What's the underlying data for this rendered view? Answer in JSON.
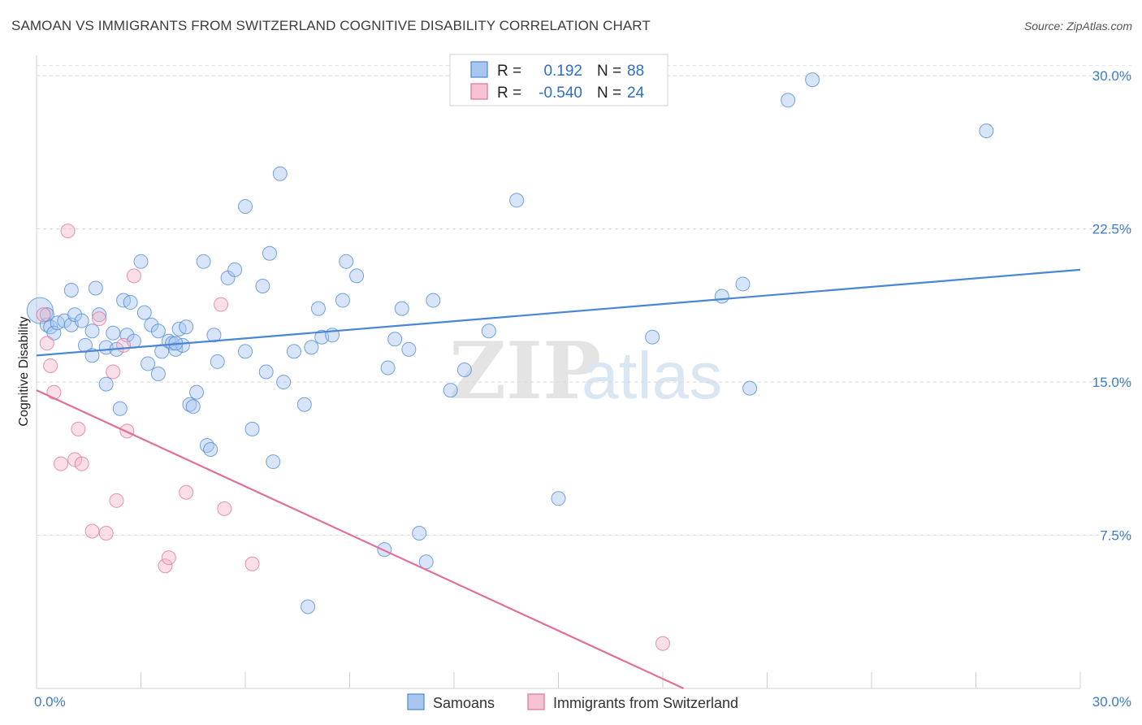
{
  "title": "SAMOAN VS IMMIGRANTS FROM SWITZERLAND COGNITIVE DISABILITY CORRELATION CHART",
  "source": "Source: ZipAtlas.com",
  "watermark": {
    "zip": "ZIP",
    "atlas": "atlas"
  },
  "colors": {
    "blue": "#4a86d6",
    "blue_fill": "#a9c6ef",
    "pink": "#e0709a",
    "pink_fill": "#f5b9cd",
    "tick": "#3d7cc9"
  },
  "legend": {
    "r_label": "R =",
    "n_label": "N =",
    "rows": [
      {
        "r": "0.192",
        "n": "88"
      },
      {
        "r": "-0.540",
        "n": "24"
      }
    ]
  },
  "chart_data": {
    "type": "scatter",
    "title": "SAMOAN VS IMMIGRANTS FROM SWITZERLAND COGNITIVE DISABILITY CORRELATION CHART",
    "xlabel": "",
    "ylabel": "Cognitive Disability",
    "xlim": [
      0,
      30
    ],
    "ylim": [
      0,
      31
    ],
    "x_tick_labels": [
      "0.0%",
      "30.0%"
    ],
    "y_ticks": [
      7.5,
      15.0,
      22.5,
      30.0
    ],
    "y_tick_labels": [
      "7.5%",
      "15.0%",
      "22.5%",
      "30.0%"
    ],
    "grid": "horizontal dashed",
    "legend_position": "top-center",
    "series": [
      {
        "name": "Samoans",
        "color": "#4a86d6",
        "trend": {
          "x": [
            0,
            30
          ],
          "y": [
            16.3,
            20.5
          ]
        },
        "points": [
          [
            0.1,
            18.5
          ],
          [
            0.3,
            17.8
          ],
          [
            0.3,
            18.3
          ],
          [
            0.4,
            17.7
          ],
          [
            0.5,
            17.4
          ],
          [
            0.6,
            17.9
          ],
          [
            0.8,
            18.0
          ],
          [
            1.0,
            17.8
          ],
          [
            1.0,
            19.5
          ],
          [
            1.1,
            18.3
          ],
          [
            1.3,
            18.0
          ],
          [
            1.4,
            16.8
          ],
          [
            1.6,
            17.5
          ],
          [
            1.6,
            16.3
          ],
          [
            1.7,
            19.6
          ],
          [
            1.8,
            18.3
          ],
          [
            2.0,
            16.7
          ],
          [
            2.0,
            14.9
          ],
          [
            2.2,
            17.4
          ],
          [
            2.3,
            16.6
          ],
          [
            2.4,
            13.7
          ],
          [
            2.5,
            19.0
          ],
          [
            2.6,
            17.3
          ],
          [
            2.7,
            18.9
          ],
          [
            2.8,
            17.0
          ],
          [
            3.0,
            20.9
          ],
          [
            3.1,
            18.4
          ],
          [
            3.2,
            15.9
          ],
          [
            3.3,
            17.8
          ],
          [
            3.5,
            15.4
          ],
          [
            3.5,
            17.5
          ],
          [
            3.6,
            16.5
          ],
          [
            3.8,
            17.0
          ],
          [
            3.9,
            16.9
          ],
          [
            4.0,
            16.6
          ],
          [
            4.1,
            17.6
          ],
          [
            4.2,
            16.8
          ],
          [
            4.3,
            17.7
          ],
          [
            4.4,
            13.9
          ],
          [
            4.5,
            13.8
          ],
          [
            4.6,
            14.5
          ],
          [
            4.8,
            20.9
          ],
          [
            4.9,
            11.9
          ],
          [
            5.0,
            11.7
          ],
          [
            5.1,
            17.3
          ],
          [
            5.2,
            16.0
          ],
          [
            5.5,
            20.1
          ],
          [
            5.7,
            20.5
          ],
          [
            6.0,
            16.5
          ],
          [
            6.0,
            23.6
          ],
          [
            6.2,
            12.7
          ],
          [
            6.5,
            19.7
          ],
          [
            6.6,
            15.5
          ],
          [
            6.7,
            21.3
          ],
          [
            6.8,
            11.1
          ],
          [
            7.0,
            25.2
          ],
          [
            7.1,
            15.0
          ],
          [
            7.4,
            16.5
          ],
          [
            7.7,
            13.9
          ],
          [
            7.8,
            4.0
          ],
          [
            7.9,
            16.7
          ],
          [
            8.1,
            18.6
          ],
          [
            8.2,
            17.2
          ],
          [
            8.5,
            17.3
          ],
          [
            8.8,
            19.0
          ],
          [
            8.9,
            20.9
          ],
          [
            9.2,
            20.2
          ],
          [
            10.0,
            6.8
          ],
          [
            10.1,
            15.7
          ],
          [
            10.3,
            17.1
          ],
          [
            10.5,
            18.6
          ],
          [
            10.7,
            16.6
          ],
          [
            11.0,
            7.6
          ],
          [
            11.2,
            6.2
          ],
          [
            11.4,
            19.0
          ],
          [
            11.9,
            14.6
          ],
          [
            12.3,
            15.6
          ],
          [
            13.0,
            17.5
          ],
          [
            13.8,
            23.9
          ],
          [
            15.0,
            9.3
          ],
          [
            17.7,
            17.2
          ],
          [
            19.7,
            19.2
          ],
          [
            20.3,
            19.8
          ],
          [
            20.5,
            14.7
          ],
          [
            21.6,
            28.8
          ],
          [
            22.3,
            29.8
          ],
          [
            27.3,
            27.3
          ],
          [
            4.0,
            16.9
          ]
        ]
      },
      {
        "name": "Immigrants from Switzerland",
        "color": "#e0709a",
        "trend": {
          "x": [
            0,
            18.6
          ],
          "y": [
            14.6,
            0
          ]
        },
        "points": [
          [
            0.2,
            18.3
          ],
          [
            0.3,
            16.9
          ],
          [
            0.4,
            15.8
          ],
          [
            0.5,
            14.5
          ],
          [
            0.7,
            11.0
          ],
          [
            0.9,
            22.4
          ],
          [
            1.1,
            11.2
          ],
          [
            1.2,
            12.7
          ],
          [
            1.3,
            11.0
          ],
          [
            1.6,
            7.7
          ],
          [
            1.8,
            18.1
          ],
          [
            2.0,
            7.6
          ],
          [
            2.2,
            15.5
          ],
          [
            2.3,
            9.2
          ],
          [
            2.5,
            16.8
          ],
          [
            2.6,
            12.6
          ],
          [
            2.8,
            20.2
          ],
          [
            3.7,
            6.0
          ],
          [
            3.8,
            6.4
          ],
          [
            4.3,
            9.6
          ],
          [
            5.3,
            18.8
          ],
          [
            5.4,
            8.8
          ],
          [
            6.2,
            6.1
          ],
          [
            18.0,
            2.2
          ]
        ]
      }
    ]
  }
}
